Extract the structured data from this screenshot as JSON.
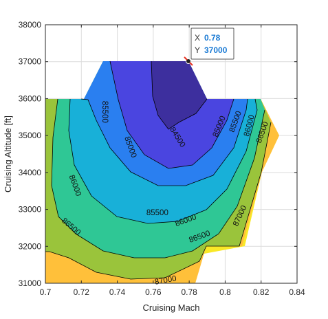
{
  "chart_data": {
    "type": "contour",
    "title": "",
    "xlabel": "Cruising Mach",
    "ylabel": "Cruising Altitude [ft]",
    "xlim": [
      0.7,
      0.84
    ],
    "ylim": [
      31000,
      38000
    ],
    "xticks": [
      "0.7",
      "0.72",
      "0.74",
      "0.76",
      "0.78",
      "0.8",
      "0.82",
      "0.84"
    ],
    "yticks": [
      "31000",
      "32000",
      "33000",
      "34000",
      "35000",
      "36000",
      "37000",
      "38000"
    ],
    "grid": true,
    "contour_levels": [
      84500,
      85000,
      85500,
      86000,
      86500,
      87000
    ],
    "level_colors": [
      "#3d2f9e",
      "#4a45e0",
      "#2a7ff0",
      "#18b0d8",
      "#2fc795",
      "#9ac43b",
      "#ffc03a",
      "#f9e827"
    ],
    "contour_labels": [
      {
        "text": "84500",
        "x": 0.7737,
        "y": 34960
      },
      {
        "text": "85000",
        "x": 0.7965,
        "y": 35250
      },
      {
        "text": "85500",
        "x": 0.8055,
        "y": 35380
      },
      {
        "text": "86000",
        "x": 0.8132,
        "y": 35270
      },
      {
        "text": "86500",
        "x": 0.8205,
        "y": 35090
      },
      {
        "text": "85500",
        "x": 0.7332,
        "y": 35640
      },
      {
        "text": "85000",
        "x": 0.7475,
        "y": 34690
      },
      {
        "text": "86000",
        "x": 0.7167,
        "y": 33650
      },
      {
        "text": "85500",
        "x": 0.7623,
        "y": 32920
      },
      {
        "text": "86000",
        "x": 0.778,
        "y": 32710
      },
      {
        "text": "86500",
        "x": 0.7145,
        "y": 32540
      },
      {
        "text": "86500",
        "x": 0.7857,
        "y": 32270
      },
      {
        "text": "87000",
        "x": 0.808,
        "y": 32830
      },
      {
        "text": "87000",
        "x": 0.7668,
        "y": 31090
      }
    ],
    "datatip": {
      "x_label": "X",
      "x_value": "0.78",
      "y_label": "Y",
      "y_value": "37000",
      "x": 0.78,
      "y": 37000
    }
  }
}
